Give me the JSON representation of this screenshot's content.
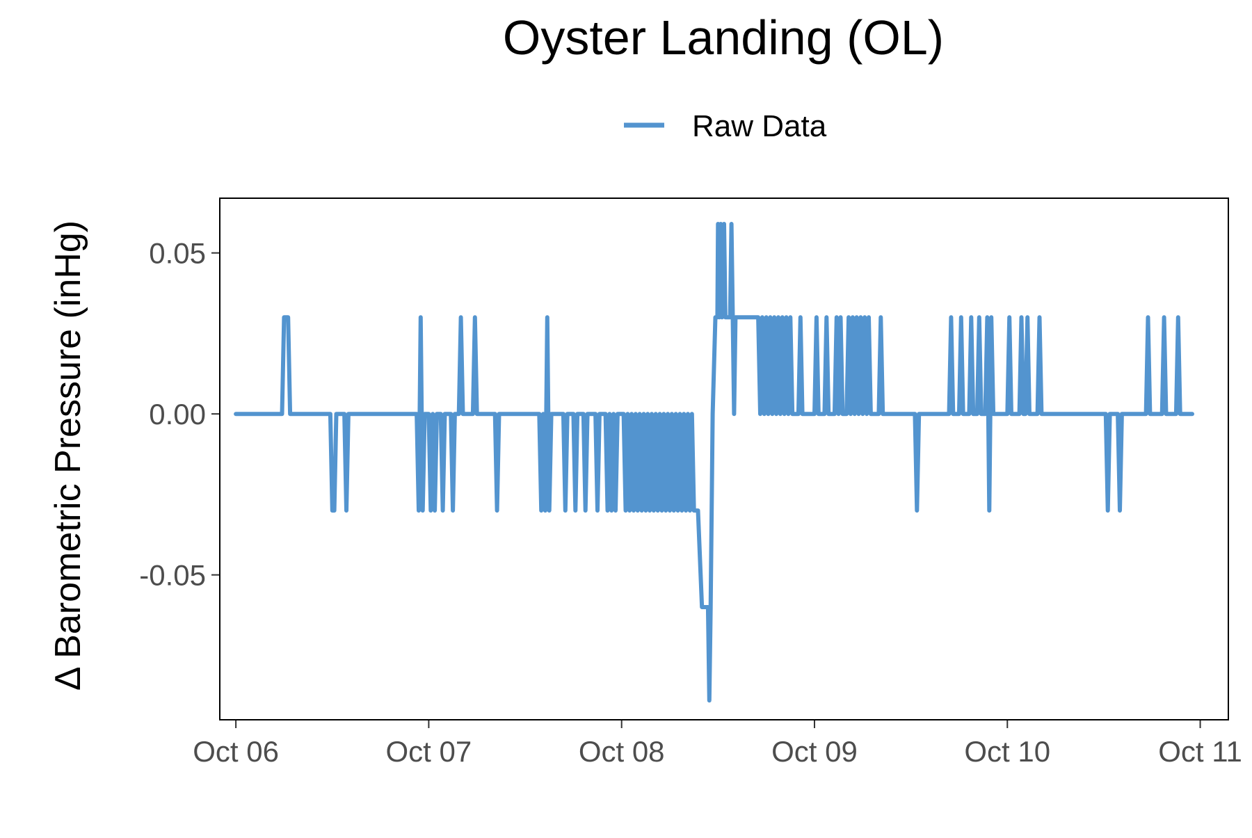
{
  "chart_data": {
    "type": "line",
    "title": "Oyster Landing (OL)",
    "xlabel": "",
    "ylabel": "Δ Barometric Pressure (inHg)",
    "legend": {
      "position": "top",
      "entries": [
        "Raw Data"
      ]
    },
    "grid": false,
    "xlim": [
      "2023-10-05T22:00",
      "2023-10-11T03:30"
    ],
    "ylim": [
      -0.095,
      0.067
    ],
    "x_ticks": [
      "2023-10-06T00:00",
      "2023-10-07T00:00",
      "2023-10-08T00:00",
      "2023-10-09T00:00",
      "2023-10-10T00:00",
      "2023-10-11T00:00"
    ],
    "x_tick_labels": [
      "Oct 06",
      "Oct 07",
      "Oct 08",
      "Oct 09",
      "Oct 10",
      "Oct 11"
    ],
    "y_ticks": [
      0.05,
      0.0,
      -0.05
    ],
    "y_tick_labels": [
      "0.05",
      "0.00",
      "-0.05"
    ],
    "series": [
      {
        "name": "Raw Data",
        "color": "#5394CF",
        "points": [
          [
            "2023-10-06T00:00",
            0.0
          ],
          [
            "2023-10-06T05:45",
            0.0
          ],
          [
            "2023-10-06T06:00",
            0.03
          ],
          [
            "2023-10-06T06:30",
            0.03
          ],
          [
            "2023-10-06T06:45",
            0.0
          ],
          [
            "2023-10-06T11:45",
            0.0
          ],
          [
            "2023-10-06T12:00",
            -0.03
          ],
          [
            "2023-10-06T12:15",
            -0.03
          ],
          [
            "2023-10-06T12:30",
            0.0
          ],
          [
            "2023-10-06T13:30",
            0.0
          ],
          [
            "2023-10-06T13:45",
            -0.03
          ],
          [
            "2023-10-06T14:00",
            0.0
          ],
          [
            "2023-10-06T22:30",
            0.0
          ],
          [
            "2023-10-06T22:45",
            -0.03
          ],
          [
            "2023-10-06T23:00",
            0.03
          ],
          [
            "2023-10-06T23:15",
            -0.03
          ],
          [
            "2023-10-06T23:30",
            0.0
          ],
          [
            "2023-10-07T00:00",
            0.0
          ],
          [
            "2023-10-07T00:15",
            -0.03
          ],
          [
            "2023-10-07T00:30",
            0.0
          ],
          [
            "2023-10-07T00:45",
            -0.03
          ],
          [
            "2023-10-07T01:00",
            0.0
          ],
          [
            "2023-10-07T01:30",
            0.0
          ],
          [
            "2023-10-07T01:45",
            -0.03
          ],
          [
            "2023-10-07T02:00",
            0.0
          ],
          [
            "2023-10-07T02:45",
            0.0
          ],
          [
            "2023-10-07T03:00",
            -0.03
          ],
          [
            "2023-10-07T03:15",
            0.0
          ],
          [
            "2023-10-07T03:45",
            0.0
          ],
          [
            "2023-10-07T04:00",
            0.03
          ],
          [
            "2023-10-07T04:15",
            0.0
          ],
          [
            "2023-10-07T05:30",
            0.0
          ],
          [
            "2023-10-07T05:45",
            0.03
          ],
          [
            "2023-10-07T06:00",
            0.0
          ],
          [
            "2023-10-07T08:15",
            0.0
          ],
          [
            "2023-10-07T08:30",
            -0.03
          ],
          [
            "2023-10-07T08:45",
            0.0
          ],
          [
            "2023-10-07T13:45",
            0.0
          ],
          [
            "2023-10-07T14:00",
            -0.03
          ],
          [
            "2023-10-07T14:15",
            0.0
          ],
          [
            "2023-10-07T14:30",
            -0.03
          ],
          [
            "2023-10-07T14:45",
            0.03
          ],
          [
            "2023-10-07T15:00",
            -0.03
          ],
          [
            "2023-10-07T15:15",
            0.0
          ],
          [
            "2023-10-07T16:45",
            0.0
          ],
          [
            "2023-10-07T17:00",
            -0.03
          ],
          [
            "2023-10-07T17:15",
            0.0
          ],
          [
            "2023-10-07T18:00",
            0.0
          ],
          [
            "2023-10-07T18:15",
            -0.03
          ],
          [
            "2023-10-07T18:30",
            0.0
          ],
          [
            "2023-10-07T19:15",
            0.0
          ],
          [
            "2023-10-07T19:30",
            -0.03
          ],
          [
            "2023-10-07T19:45",
            0.0
          ],
          [
            "2023-10-07T20:45",
            0.0
          ],
          [
            "2023-10-07T21:00",
            -0.03
          ],
          [
            "2023-10-07T21:15",
            0.0
          ],
          [
            "2023-10-07T22:00",
            0.0
          ],
          [
            "2023-10-07T22:15",
            -0.03
          ],
          [
            "2023-10-07T22:30",
            0.0
          ],
          [
            "2023-10-07T22:45",
            -0.03
          ],
          [
            "2023-10-07T23:00",
            0.0
          ],
          [
            "2023-10-07T23:15",
            -0.03
          ],
          [
            "2023-10-07T23:30",
            0.0
          ],
          [
            "2023-10-08T00:15",
            0.0
          ],
          [
            "2023-10-08T00:30",
            -0.03
          ],
          [
            "2023-10-08T00:45",
            0.0
          ],
          [
            "2023-10-08T01:00",
            -0.03
          ],
          [
            "2023-10-08T01:15",
            0.0
          ],
          [
            "2023-10-08T01:30",
            -0.03
          ],
          [
            "2023-10-08T01:45",
            0.0
          ],
          [
            "2023-10-08T02:00",
            -0.03
          ],
          [
            "2023-10-08T02:15",
            0.0
          ],
          [
            "2023-10-08T02:30",
            -0.03
          ],
          [
            "2023-10-08T02:45",
            0.0
          ],
          [
            "2023-10-08T03:00",
            -0.03
          ],
          [
            "2023-10-08T03:15",
            0.0
          ],
          [
            "2023-10-08T03:30",
            -0.03
          ],
          [
            "2023-10-08T03:45",
            0.0
          ],
          [
            "2023-10-08T04:00",
            -0.03
          ],
          [
            "2023-10-08T04:15",
            0.0
          ],
          [
            "2023-10-08T04:30",
            -0.03
          ],
          [
            "2023-10-08T04:45",
            0.0
          ],
          [
            "2023-10-08T05:00",
            -0.03
          ],
          [
            "2023-10-08T05:15",
            0.0
          ],
          [
            "2023-10-08T05:30",
            -0.03
          ],
          [
            "2023-10-08T05:45",
            0.0
          ],
          [
            "2023-10-08T06:00",
            -0.03
          ],
          [
            "2023-10-08T06:15",
            0.0
          ],
          [
            "2023-10-08T06:30",
            -0.03
          ],
          [
            "2023-10-08T06:45",
            0.0
          ],
          [
            "2023-10-08T07:00",
            -0.03
          ],
          [
            "2023-10-08T07:15",
            0.0
          ],
          [
            "2023-10-08T07:30",
            -0.03
          ],
          [
            "2023-10-08T07:45",
            0.0
          ],
          [
            "2023-10-08T08:00",
            -0.03
          ],
          [
            "2023-10-08T08:15",
            0.0
          ],
          [
            "2023-10-08T08:30",
            -0.03
          ],
          [
            "2023-10-08T08:45",
            0.0
          ],
          [
            "2023-10-08T09:00",
            -0.03
          ],
          [
            "2023-10-08T09:15",
            -0.03
          ],
          [
            "2023-10-08T09:30",
            -0.03
          ],
          [
            "2023-10-08T10:00",
            -0.06
          ],
          [
            "2023-10-08T10:45",
            -0.06
          ],
          [
            "2023-10-08T10:55",
            -0.089
          ],
          [
            "2023-10-08T11:05",
            -0.06
          ],
          [
            "2023-10-08T11:20",
            0.0
          ],
          [
            "2023-10-08T11:40",
            0.03
          ],
          [
            "2023-10-08T11:55",
            0.03
          ],
          [
            "2023-10-08T12:00",
            0.059
          ],
          [
            "2023-10-08T12:10",
            0.03
          ],
          [
            "2023-10-08T12:20",
            0.059
          ],
          [
            "2023-10-08T12:30",
            0.03
          ],
          [
            "2023-10-08T12:45",
            0.059
          ],
          [
            "2023-10-08T12:55",
            0.03
          ],
          [
            "2023-10-08T13:30",
            0.03
          ],
          [
            "2023-10-08T13:40",
            0.059
          ],
          [
            "2023-10-08T13:50",
            0.03
          ],
          [
            "2023-10-08T14:00",
            0.0
          ],
          [
            "2023-10-08T14:10",
            0.03
          ],
          [
            "2023-10-08T17:00",
            0.03
          ],
          [
            "2023-10-08T17:15",
            0.0
          ],
          [
            "2023-10-08T17:30",
            0.03
          ],
          [
            "2023-10-08T17:45",
            0.0
          ],
          [
            "2023-10-08T18:00",
            0.03
          ],
          [
            "2023-10-08T18:15",
            0.0
          ],
          [
            "2023-10-08T18:30",
            0.03
          ],
          [
            "2023-10-08T18:45",
            0.0
          ],
          [
            "2023-10-08T19:00",
            0.03
          ],
          [
            "2023-10-08T19:15",
            0.0
          ],
          [
            "2023-10-08T19:30",
            0.03
          ],
          [
            "2023-10-08T19:45",
            0.0
          ],
          [
            "2023-10-08T20:00",
            0.03
          ],
          [
            "2023-10-08T20:15",
            0.0
          ],
          [
            "2023-10-08T20:30",
            0.03
          ],
          [
            "2023-10-08T20:45",
            0.0
          ],
          [
            "2023-10-08T21:00",
            0.03
          ],
          [
            "2023-10-08T21:15",
            0.0
          ],
          [
            "2023-10-08T22:00",
            0.0
          ],
          [
            "2023-10-08T22:15",
            0.03
          ],
          [
            "2023-10-08T22:30",
            0.0
          ],
          [
            "2023-10-09T00:00",
            0.0
          ],
          [
            "2023-10-09T00:15",
            0.03
          ],
          [
            "2023-10-09T00:30",
            0.0
          ],
          [
            "2023-10-09T01:15",
            0.0
          ],
          [
            "2023-10-09T01:30",
            0.03
          ],
          [
            "2023-10-09T01:45",
            0.0
          ],
          [
            "2023-10-09T02:30",
            0.0
          ],
          [
            "2023-10-09T02:45",
            0.03
          ],
          [
            "2023-10-09T03:00",
            0.0
          ],
          [
            "2023-10-09T03:15",
            0.03
          ],
          [
            "2023-10-09T03:30",
            0.0
          ],
          [
            "2023-10-09T04:00",
            0.0
          ],
          [
            "2023-10-09T04:15",
            0.03
          ],
          [
            "2023-10-09T04:30",
            0.0
          ],
          [
            "2023-10-09T04:45",
            0.03
          ],
          [
            "2023-10-09T05:00",
            0.0
          ],
          [
            "2023-10-09T05:15",
            0.03
          ],
          [
            "2023-10-09T05:30",
            0.0
          ],
          [
            "2023-10-09T05:45",
            0.03
          ],
          [
            "2023-10-09T06:00",
            0.0
          ],
          [
            "2023-10-09T06:15",
            0.03
          ],
          [
            "2023-10-09T06:30",
            0.0
          ],
          [
            "2023-10-09T06:45",
            0.03
          ],
          [
            "2023-10-09T07:00",
            0.0
          ],
          [
            "2023-10-09T08:00",
            0.0
          ],
          [
            "2023-10-09T08:15",
            0.03
          ],
          [
            "2023-10-09T08:30",
            0.0
          ],
          [
            "2023-10-09T12:30",
            0.0
          ],
          [
            "2023-10-09T12:45",
            -0.03
          ],
          [
            "2023-10-09T13:00",
            0.0
          ],
          [
            "2023-10-09T16:45",
            0.0
          ],
          [
            "2023-10-09T17:00",
            0.03
          ],
          [
            "2023-10-09T17:15",
            0.0
          ],
          [
            "2023-10-09T18:00",
            0.0
          ],
          [
            "2023-10-09T18:15",
            0.03
          ],
          [
            "2023-10-09T18:30",
            0.0
          ],
          [
            "2023-10-09T19:15",
            0.0
          ],
          [
            "2023-10-09T19:30",
            0.03
          ],
          [
            "2023-10-09T19:45",
            0.0
          ],
          [
            "2023-10-09T20:15",
            0.0
          ],
          [
            "2023-10-09T20:30",
            0.03
          ],
          [
            "2023-10-09T20:45",
            0.0
          ],
          [
            "2023-10-09T21:15",
            0.0
          ],
          [
            "2023-10-09T21:30",
            0.03
          ],
          [
            "2023-10-09T21:45",
            -0.03
          ],
          [
            "2023-10-09T22:00",
            0.03
          ],
          [
            "2023-10-09T22:15",
            0.0
          ],
          [
            "2023-10-10T00:00",
            0.0
          ],
          [
            "2023-10-10T00:15",
            0.03
          ],
          [
            "2023-10-10T00:30",
            0.0
          ],
          [
            "2023-10-10T01:30",
            0.0
          ],
          [
            "2023-10-10T01:45",
            0.03
          ],
          [
            "2023-10-10T02:00",
            0.0
          ],
          [
            "2023-10-10T02:15",
            0.0
          ],
          [
            "2023-10-10T02:30",
            0.03
          ],
          [
            "2023-10-10T02:45",
            0.0
          ],
          [
            "2023-10-10T03:45",
            0.0
          ],
          [
            "2023-10-10T04:00",
            0.03
          ],
          [
            "2023-10-10T04:15",
            0.0
          ],
          [
            "2023-10-10T12:15",
            0.0
          ],
          [
            "2023-10-10T12:30",
            -0.03
          ],
          [
            "2023-10-10T12:45",
            0.0
          ],
          [
            "2023-10-10T13:45",
            0.0
          ],
          [
            "2023-10-10T14:00",
            -0.03
          ],
          [
            "2023-10-10T14:15",
            0.0
          ],
          [
            "2023-10-10T17:15",
            0.0
          ],
          [
            "2023-10-10T17:30",
            0.03
          ],
          [
            "2023-10-10T17:45",
            0.0
          ],
          [
            "2023-10-10T19:15",
            0.0
          ],
          [
            "2023-10-10T19:30",
            0.03
          ],
          [
            "2023-10-10T19:45",
            0.0
          ],
          [
            "2023-10-10T21:00",
            0.0
          ],
          [
            "2023-10-10T21:15",
            0.03
          ],
          [
            "2023-10-10T21:30",
            0.0
          ],
          [
            "2023-10-10T23:00",
            0.0
          ]
        ]
      }
    ]
  }
}
